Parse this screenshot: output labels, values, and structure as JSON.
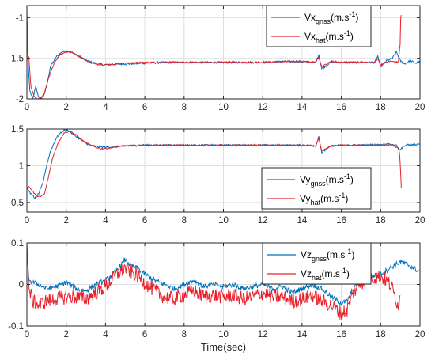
{
  "colors": {
    "gnss": "#0072BD",
    "hat": "#E8202A",
    "grid": "#dedede",
    "axis": "#262626"
  },
  "chart_data": [
    {
      "type": "line",
      "xlim": [
        0,
        20
      ],
      "ylim": [
        -2,
        -0.85
      ],
      "xticks": [
        0,
        2,
        4,
        6,
        8,
        10,
        12,
        14,
        16,
        18,
        20
      ],
      "yticks": [
        -2,
        -1.5,
        -1
      ],
      "grid": true,
      "legend_position": "top-right",
      "xlabel": "",
      "series": [
        {
          "name": "gnss",
          "legend_main": "Vx",
          "legend_sub": "gnss",
          "legend_unit": "(m.s",
          "legend_exp": "-1",
          "legend_close": ")",
          "color_key": "gnss",
          "x": [
            0,
            0.05,
            0.15,
            0.3,
            0.45,
            0.6,
            0.8,
            1.0,
            1.2,
            1.5,
            1.8,
            2.1,
            2.4,
            2.7,
            3.0,
            3.3,
            3.6,
            4.0,
            5,
            6,
            7,
            8,
            9,
            10,
            11,
            12,
            13,
            14,
            14.7,
            14.85,
            15.0,
            15.5,
            16,
            17,
            17.7,
            17.85,
            18.0,
            18.3,
            18.6,
            18.8,
            19.0,
            19.2,
            19.5,
            19.8,
            20.0
          ],
          "y": [
            -1.0,
            -1.5,
            -1.9,
            -2.0,
            -1.85,
            -1.98,
            -2.0,
            -1.85,
            -1.6,
            -1.48,
            -1.42,
            -1.41,
            -1.44,
            -1.48,
            -1.52,
            -1.55,
            -1.57,
            -1.58,
            -1.57,
            -1.56,
            -1.55,
            -1.55,
            -1.55,
            -1.55,
            -1.55,
            -1.55,
            -1.54,
            -1.54,
            -1.55,
            -1.45,
            -1.63,
            -1.54,
            -1.55,
            -1.55,
            -1.55,
            -1.47,
            -1.6,
            -1.53,
            -1.5,
            -1.42,
            -1.53,
            -1.57,
            -1.53,
            -1.56,
            -1.54
          ],
          "noise": 0.012
        },
        {
          "name": "hat",
          "legend_main": "Vx",
          "legend_sub": "hat",
          "legend_unit": "(m.s",
          "legend_exp": "-1",
          "legend_close": ")",
          "color_key": "hat",
          "x": [
            0,
            0.05,
            0.1,
            0.2,
            0.35,
            0.5,
            0.7,
            0.9,
            1.1,
            1.4,
            1.7,
            2.0,
            2.3,
            2.6,
            2.9,
            3.2,
            3.5,
            3.9,
            5,
            6,
            7,
            8,
            9,
            10,
            11,
            12,
            13,
            14,
            14.7,
            14.85,
            15.0,
            15.5,
            16,
            17,
            17.7,
            17.85,
            18.0,
            18.5,
            18.9,
            19.0,
            19.02,
            19.06
          ],
          "y": [
            -0.9,
            -1.5,
            -1.48,
            -1.85,
            -1.96,
            -2.0,
            -2.0,
            -1.92,
            -1.75,
            -1.55,
            -1.45,
            -1.42,
            -1.43,
            -1.47,
            -1.51,
            -1.55,
            -1.57,
            -1.58,
            -1.56,
            -1.55,
            -1.55,
            -1.55,
            -1.55,
            -1.55,
            -1.55,
            -1.55,
            -1.54,
            -1.54,
            -1.55,
            -1.48,
            -1.6,
            -1.54,
            -1.55,
            -1.55,
            -1.55,
            -1.5,
            -1.58,
            -1.53,
            -1.55,
            -1.3,
            -1.0,
            -0.95
          ],
          "noise": 0.008
        }
      ]
    },
    {
      "type": "line",
      "xlim": [
        0,
        20
      ],
      "ylim": [
        0.37,
        1.5
      ],
      "xticks": [
        0,
        2,
        4,
        6,
        8,
        10,
        12,
        14,
        16,
        18,
        20
      ],
      "yticks": [
        0.5,
        1,
        1.5
      ],
      "grid": true,
      "legend_position": "center-right",
      "xlabel": "",
      "series": [
        {
          "name": "gnss",
          "legend_main": "Vy",
          "legend_sub": "gnss",
          "legend_unit": "(m.s",
          "legend_exp": "-1",
          "legend_close": ")",
          "color_key": "gnss",
          "x": [
            0,
            0.2,
            0.4,
            0.6,
            0.8,
            1.0,
            1.2,
            1.5,
            1.8,
            2.0,
            2.3,
            2.6,
            2.9,
            3.2,
            3.6,
            4.0,
            5,
            6,
            7,
            8,
            9,
            10,
            11,
            12,
            13,
            14,
            14.7,
            14.85,
            15.0,
            15.5,
            16,
            17,
            18,
            18.5,
            19.0,
            19.3,
            19.6,
            20.0
          ],
          "y": [
            0.7,
            0.62,
            0.56,
            0.62,
            0.75,
            1.0,
            1.2,
            1.38,
            1.47,
            1.5,
            1.44,
            1.38,
            1.32,
            1.28,
            1.26,
            1.25,
            1.27,
            1.28,
            1.28,
            1.28,
            1.28,
            1.28,
            1.28,
            1.28,
            1.28,
            1.28,
            1.27,
            1.4,
            1.18,
            1.27,
            1.28,
            1.28,
            1.29,
            1.3,
            1.22,
            1.29,
            1.28,
            1.3
          ],
          "noise": 0.012
        },
        {
          "name": "hat",
          "legend_main": "Vy",
          "legend_sub": "hat",
          "legend_unit": "(m.s",
          "legend_exp": "-1",
          "legend_close": ")",
          "color_key": "hat",
          "x": [
            0,
            0.1,
            0.3,
            0.5,
            0.7,
            0.9,
            1.1,
            1.3,
            1.6,
            1.9,
            2.2,
            2.5,
            2.8,
            3.1,
            3.4,
            3.8,
            4.2,
            5,
            6,
            7,
            8,
            9,
            10,
            11,
            12,
            13,
            14,
            14.7,
            14.85,
            15.0,
            15.5,
            16,
            17,
            18,
            18.8,
            18.95,
            19.0,
            19.05
          ],
          "y": [
            0.7,
            0.72,
            0.65,
            0.58,
            0.58,
            0.62,
            0.85,
            1.1,
            1.32,
            1.45,
            1.47,
            1.42,
            1.35,
            1.3,
            1.26,
            1.23,
            1.24,
            1.27,
            1.28,
            1.28,
            1.28,
            1.28,
            1.28,
            1.28,
            1.28,
            1.28,
            1.28,
            1.27,
            1.37,
            1.2,
            1.27,
            1.28,
            1.28,
            1.28,
            1.28,
            1.2,
            1.0,
            0.7
          ],
          "noise": 0.008
        }
      ]
    },
    {
      "type": "line",
      "xlim": [
        0,
        20
      ],
      "ylim": [
        -0.1,
        0.1
      ],
      "xticks": [
        0,
        2,
        4,
        6,
        8,
        10,
        12,
        14,
        16,
        18,
        20
      ],
      "yticks": [
        -0.1,
        0,
        0.1
      ],
      "grid": true,
      "legend_position": "top-right",
      "xlabel": "Time(sec)",
      "series": [
        {
          "name": "gnss",
          "legend_main": "Vz",
          "legend_sub": "gnss",
          "legend_unit": "(m.s",
          "legend_exp": "-1",
          "legend_close": ")",
          "color_key": "gnss",
          "x": [
            0,
            0.1,
            0.3,
            0.6,
            1.0,
            1.5,
            2.0,
            2.5,
            3.0,
            3.5,
            4.0,
            4.5,
            5.0,
            5.3,
            5.6,
            6.0,
            6.5,
            7.0,
            7.5,
            8.0,
            8.5,
            9.0,
            9.5,
            10.0,
            10.5,
            11.0,
            11.5,
            12.0,
            12.5,
            13.0,
            13.5,
            14.0,
            14.5,
            15.0,
            15.5,
            16.0,
            16.3,
            16.6,
            17.0,
            17.5,
            18.0,
            18.5,
            19.0,
            19.5,
            20.0
          ],
          "y": [
            0.09,
            0.01,
            0.005,
            0.0,
            -0.01,
            -0.005,
            0.005,
            -0.01,
            -0.015,
            0.0,
            0.01,
            0.03,
            0.06,
            0.045,
            0.04,
            0.025,
            0.01,
            0.0,
            -0.01,
            0.0,
            0.01,
            -0.005,
            0.0,
            -0.005,
            0.0,
            -0.01,
            -0.005,
            0.0,
            -0.01,
            -0.005,
            -0.02,
            -0.01,
            0.0,
            -0.01,
            -0.03,
            -0.045,
            -0.04,
            -0.01,
            0.01,
            0.02,
            0.025,
            0.04,
            0.055,
            0.045,
            0.03
          ],
          "noise": 0.006
        },
        {
          "name": "hat",
          "legend_main": "Vz",
          "legend_sub": "hat",
          "legend_unit": "(m.s",
          "legend_exp": "-1",
          "legend_close": ")",
          "color_key": "hat",
          "x": [
            0,
            0.1,
            0.3,
            0.6,
            1.0,
            1.5,
            2.0,
            2.5,
            3.0,
            3.5,
            4.0,
            4.5,
            5.0,
            5.3,
            5.6,
            6.0,
            6.5,
            7.0,
            7.5,
            8.0,
            8.5,
            9.0,
            9.5,
            10.0,
            10.5,
            11.0,
            11.5,
            12.0,
            12.5,
            13.0,
            13.5,
            14.0,
            14.5,
            15.0,
            15.5,
            16.0,
            16.3,
            16.6,
            17.0,
            17.5,
            18.0,
            18.5,
            18.9,
            19.0
          ],
          "y": [
            0.1,
            -0.01,
            -0.04,
            -0.05,
            -0.04,
            -0.035,
            -0.03,
            -0.03,
            -0.035,
            -0.02,
            -0.005,
            0.02,
            0.04,
            0.03,
            0.02,
            0.005,
            -0.015,
            -0.03,
            -0.035,
            -0.025,
            -0.015,
            -0.03,
            -0.025,
            -0.03,
            -0.025,
            -0.035,
            -0.03,
            -0.02,
            -0.03,
            -0.03,
            -0.04,
            -0.035,
            -0.025,
            -0.04,
            -0.05,
            -0.07,
            -0.06,
            -0.02,
            0.005,
            0.015,
            0.02,
            0.0,
            -0.05,
            -0.03
          ],
          "noise": 0.018
        }
      ]
    }
  ]
}
